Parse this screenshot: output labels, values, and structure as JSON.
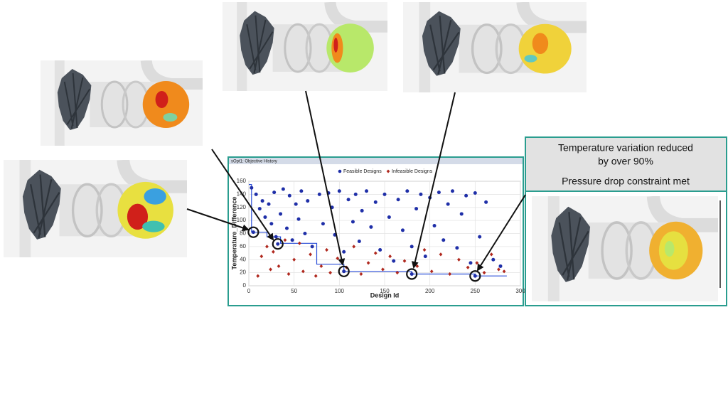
{
  "chart_data": {
    "type": "scatter",
    "title": "sOpt1: Objective History",
    "x_label": "Design Id",
    "y_label": "Temperature_Difference",
    "xlim": [
      0,
      300
    ],
    "xticks": [
      0,
      50,
      100,
      150,
      200,
      250,
      300
    ],
    "ylim": [
      0,
      160
    ],
    "yticks": [
      0,
      20,
      40,
      60,
      80,
      100,
      120,
      140,
      160
    ],
    "grid": true,
    "series": [
      {
        "name": "Feasible Designs",
        "color": "#1f2fa8",
        "marker": "circle",
        "x": [
          3,
          8,
          12,
          15,
          18,
          22,
          25,
          28,
          30,
          35,
          38,
          42,
          45,
          48,
          52,
          55,
          58,
          62,
          65,
          70,
          78,
          82,
          88,
          92,
          95,
          100,
          105,
          110,
          115,
          118,
          122,
          125,
          130,
          135,
          140,
          145,
          150,
          155,
          160,
          165,
          170,
          175,
          180,
          185,
          190,
          195,
          200,
          205,
          210,
          215,
          220,
          225,
          230,
          235,
          240,
          245,
          250,
          255,
          262,
          270,
          278
        ],
        "values": [
          150,
          140,
          118,
          130,
          105,
          125,
          95,
          143,
          75,
          110,
          148,
          88,
          138,
          70,
          125,
          102,
          145,
          80,
          130,
          60,
          140,
          95,
          142,
          120,
          78,
          145,
          52,
          132,
          98,
          140,
          68,
          115,
          145,
          90,
          128,
          55,
          140,
          105,
          38,
          132,
          85,
          145,
          60,
          118,
          140,
          45,
          135,
          92,
          143,
          70,
          125,
          145,
          58,
          110,
          138,
          35,
          142,
          75,
          128,
          40,
          30
        ]
      },
      {
        "name": "Infeasible Designs",
        "color": "#b0281e",
        "marker": "diamond",
        "x": [
          10,
          14,
          20,
          24,
          27,
          33,
          40,
          44,
          50,
          56,
          60,
          68,
          74,
          80,
          86,
          90,
          98,
          108,
          116,
          124,
          132,
          140,
          148,
          156,
          164,
          172,
          186,
          194,
          202,
          212,
          222,
          232,
          242,
          252,
          260,
          268,
          276,
          282
        ],
        "values": [
          15,
          45,
          60,
          25,
          52,
          30,
          70,
          18,
          40,
          65,
          22,
          48,
          15,
          30,
          55,
          20,
          42,
          28,
          60,
          18,
          35,
          50,
          25,
          45,
          20,
          38,
          30,
          55,
          22,
          48,
          18,
          40,
          28,
          35,
          20,
          48,
          25,
          22
        ]
      }
    ],
    "best_line": {
      "color": "#2b4fd8",
      "x": [
        0,
        3,
        3,
        20,
        20,
        35,
        35,
        75,
        75,
        105,
        105,
        180,
        180,
        250,
        250,
        285
      ],
      "values": [
        155,
        155,
        82,
        82,
        75,
        75,
        65,
        65,
        33,
        33,
        22,
        22,
        18,
        18,
        15,
        15
      ]
    },
    "highlights": {
      "x": [
        5,
        32,
        105,
        180,
        250
      ],
      "values": [
        82,
        64,
        22,
        18,
        15
      ]
    },
    "annotations": [
      "Temperature variation reduced",
      "by over 90%",
      "Pressure drop constraint met"
    ]
  }
}
